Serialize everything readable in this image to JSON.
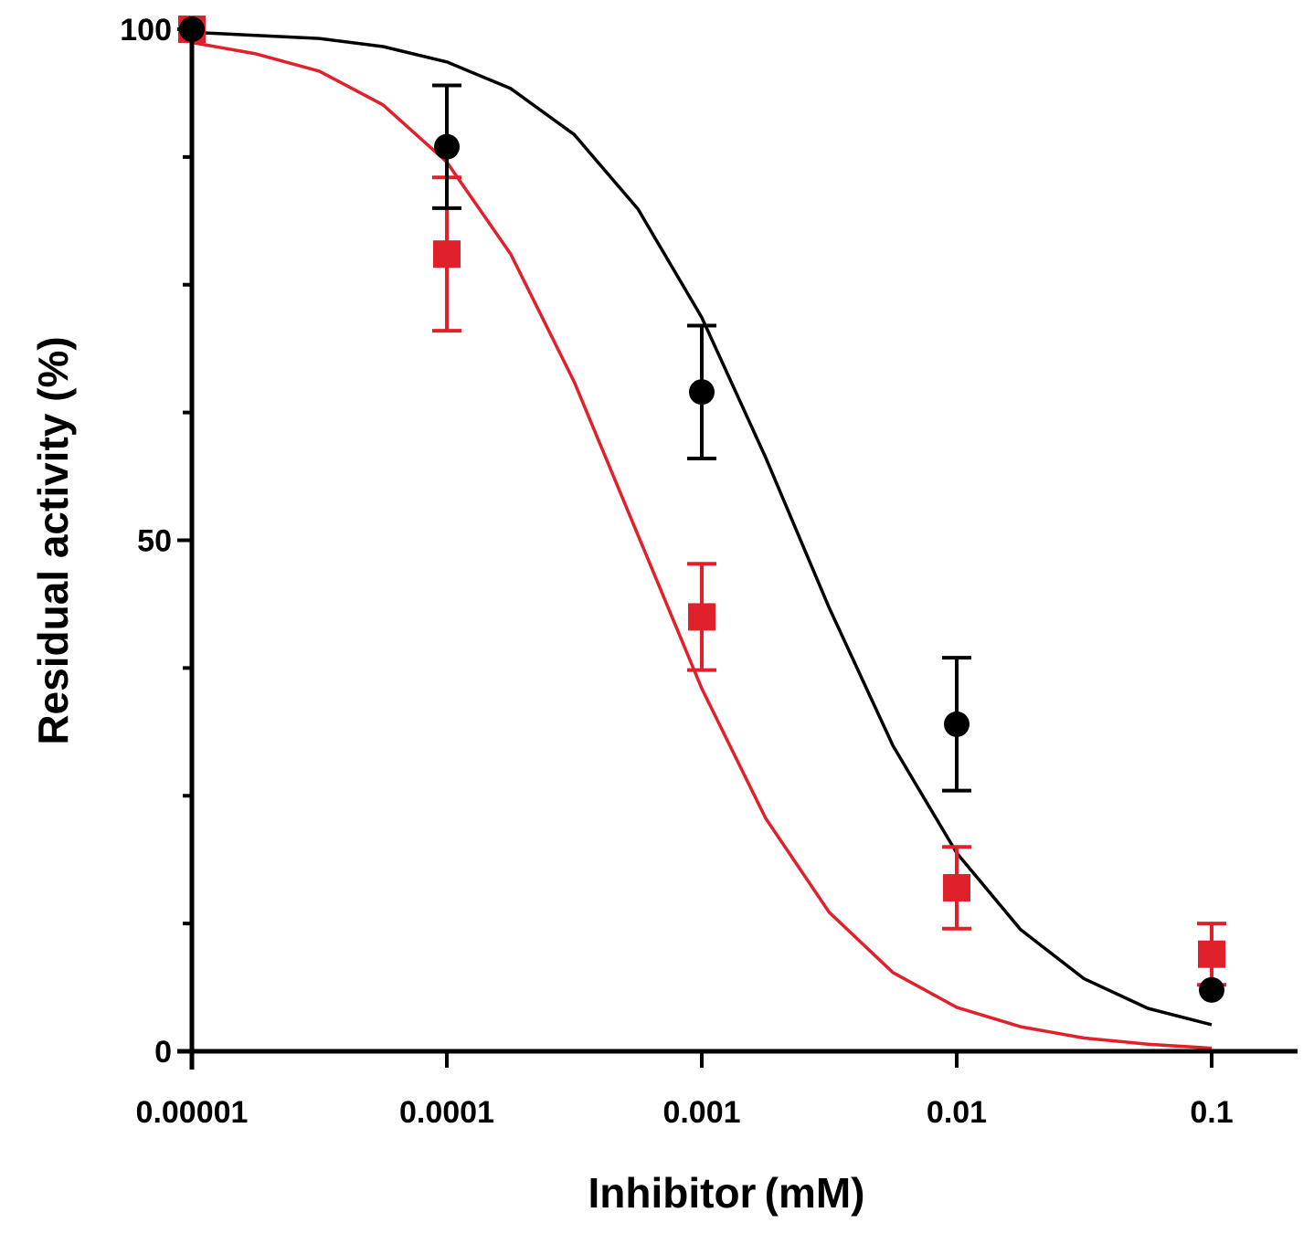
{
  "chart_data": {
    "type": "scatter",
    "title": "",
    "xlabel": "Inhibitor (mM)",
    "ylabel": "Residual activity (%)",
    "x_scale": "log",
    "xlim": [
      1e-05,
      0.14
    ],
    "ylim": [
      0,
      100
    ],
    "x_ticks": [
      1e-05,
      0.0001,
      0.001,
      0.01,
      0.1
    ],
    "x_tick_labels": [
      "0.00001",
      "0.0001",
      "0.001",
      "0.01",
      "0.1"
    ],
    "y_ticks": [
      0,
      50,
      100
    ],
    "y_tick_labels": [
      "0",
      "50",
      "100"
    ],
    "y_minor_ticks": [
      12.5,
      25,
      37.5,
      62.5,
      75,
      87.5
    ],
    "grid": false,
    "legend": "none",
    "series": [
      {
        "color": "#000000",
        "marker": "circle",
        "x": [
          1e-05,
          0.0001,
          0.001,
          0.01,
          0.1
        ],
        "y": [
          100,
          88.5,
          64.5,
          32,
          6
        ],
        "error": [
          0,
          6,
          6.5,
          6.5,
          0
        ],
        "fit_curve": [
          [
            1e-05,
            99.7
          ],
          [
            1.78e-05,
            99.4
          ],
          [
            3.16e-05,
            99.1
          ],
          [
            5.62e-05,
            98.3
          ],
          [
            0.0001,
            96.8
          ],
          [
            0.000178,
            94.2
          ],
          [
            0.000316,
            89.7
          ],
          [
            0.000562,
            82.4
          ],
          [
            0.001,
            71.8
          ],
          [
            0.00178,
            58.1
          ],
          [
            0.00316,
            43.4
          ],
          [
            0.00562,
            29.9
          ],
          [
            0.01,
            19.4
          ],
          [
            0.0178,
            11.9
          ],
          [
            0.0316,
            7.1
          ],
          [
            0.0562,
            4.2
          ],
          [
            0.1,
            2.6
          ]
        ]
      },
      {
        "color": "#e0202a",
        "marker": "square",
        "x": [
          1e-05,
          0.0001,
          0.001,
          0.01,
          0.1
        ],
        "y": [
          100,
          78,
          42.5,
          16,
          9.5
        ],
        "error": [
          0,
          7.5,
          5.2,
          4,
          3
        ],
        "fit_curve": [
          [
            1e-05,
            98.7
          ],
          [
            1.78e-05,
            97.6
          ],
          [
            3.16e-05,
            95.9
          ],
          [
            5.62e-05,
            92.6
          ],
          [
            0.0001,
            87
          ],
          [
            0.000178,
            78
          ],
          [
            0.000316,
            65.5
          ],
          [
            0.000562,
            50.5
          ],
          [
            0.001,
            35.5
          ],
          [
            0.00178,
            22.8
          ],
          [
            0.00316,
            13.6
          ],
          [
            0.00562,
            7.7
          ],
          [
            0.01,
            4.3
          ],
          [
            0.0178,
            2.4
          ],
          [
            0.0316,
            1.3
          ],
          [
            0.0562,
            0.7
          ],
          [
            0.1,
            0.3
          ]
        ]
      }
    ]
  }
}
